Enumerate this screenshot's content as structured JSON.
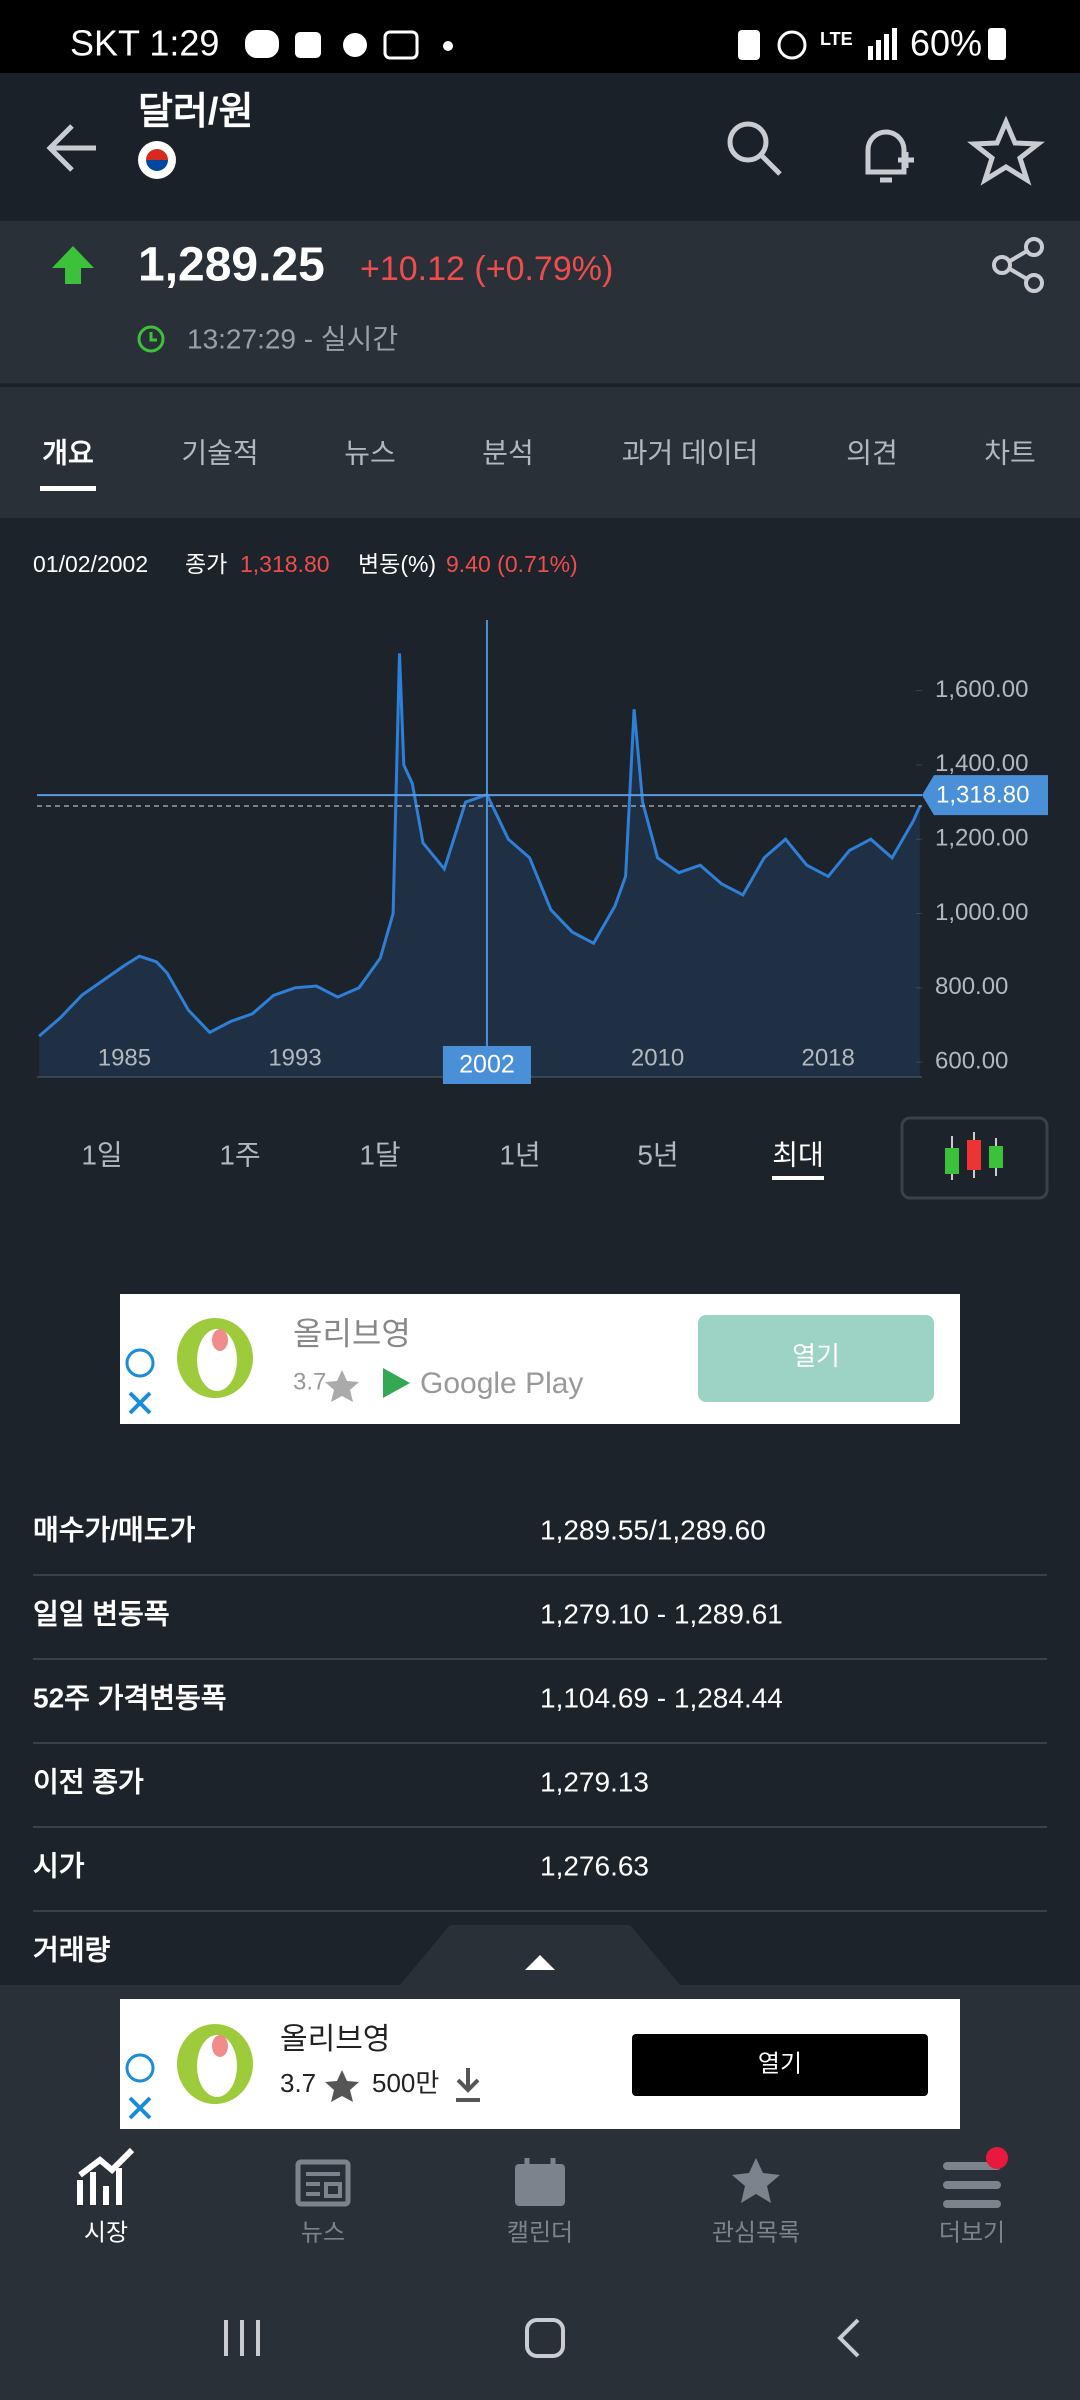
{
  "status_bar": {
    "carrier_time": "SKT 1:29",
    "network": "LTE",
    "battery": "60%"
  },
  "header": {
    "title": "달러/원"
  },
  "quote": {
    "price": "1,289.25",
    "change": "+10.12 (+0.79%)",
    "time": "13:27:29 - 실시간"
  },
  "tabs": [
    "개요",
    "기술적",
    "뉴스",
    "분석",
    "과거 데이터",
    "의견",
    "차트"
  ],
  "chart_info": {
    "date": "01/02/2002",
    "close_label": "종가",
    "close": "1,318.80",
    "change_label": "변동(%)",
    "change": "9.40 (0.71%)"
  },
  "chart_data": {
    "type": "line",
    "x": [
      1981,
      1982,
      1983,
      1984,
      1985,
      1985.7,
      1986.5,
      1987,
      1988,
      1989,
      1990,
      1991,
      1992,
      1993,
      1994,
      1995,
      1996,
      1997,
      1997.6,
      1997.9,
      1998.1,
      1998.5,
      1999,
      2000,
      2001,
      2002,
      2003,
      2004,
      2005,
      2006,
      2007,
      2008,
      2008.5,
      2008.9,
      2009.3,
      2010,
      2011,
      2012,
      2013,
      2014,
      2015,
      2016,
      2017,
      2018,
      2019,
      2020,
      2021,
      2022,
      2022.3
    ],
    "values": [
      670,
      720,
      780,
      820,
      860,
      885,
      870,
      840,
      740,
      680,
      710,
      730,
      780,
      800,
      805,
      775,
      800,
      880,
      1000,
      1700,
      1400,
      1350,
      1190,
      1120,
      1300,
      1320,
      1200,
      1150,
      1010,
      950,
      920,
      1020,
      1100,
      1550,
      1300,
      1150,
      1110,
      1130,
      1080,
      1050,
      1150,
      1200,
      1130,
      1100,
      1170,
      1200,
      1150,
      1250,
      1289.25
    ],
    "color": "#2f7fd6",
    "xlim": [
      1980.9,
      2022.4
    ],
    "ylim": [
      560,
      1790
    ],
    "xticks": [
      1985,
      1993,
      2010,
      2018
    ],
    "yticks": [
      {
        "value": 600,
        "label": "600.00"
      },
      {
        "value": 800,
        "label": "800.00"
      },
      {
        "value": 1000,
        "label": "1,000.00"
      },
      {
        "value": 1200,
        "label": "1,200.00"
      },
      {
        "value": 1400,
        "label": "1,400.00"
      },
      {
        "value": 1600,
        "label": "1,600.00"
      }
    ],
    "crosshair": {
      "x": 2002,
      "y": 1318.8,
      "y_label": "1,318.80"
    }
  },
  "periods": [
    "1일",
    "1주",
    "1달",
    "1년",
    "5년",
    "최대"
  ],
  "ads": [
    {
      "name": "올리브영",
      "rating": "3.7",
      "store": "Google Play",
      "button": "열기"
    },
    {
      "name": "올리브영",
      "rating": "3.7",
      "downloads": "500만",
      "button": "열기"
    }
  ],
  "stats": {
    "rows": [
      [
        "매수가/매도가",
        "1,289.55/1,289.60"
      ],
      [
        "일일 변동폭",
        "1,279.10 - 1,289.61"
      ],
      [
        "52주 가격변동폭",
        "1,104.69 - 1,284.44"
      ],
      [
        "이전 종가",
        "1,279.13"
      ],
      [
        "시가",
        "1,276.63"
      ],
      [
        "거래량"
      ]
    ]
  },
  "bottom_nav": [
    "시장",
    "뉴스",
    "캘린더",
    "관심목록",
    "더보기"
  ]
}
